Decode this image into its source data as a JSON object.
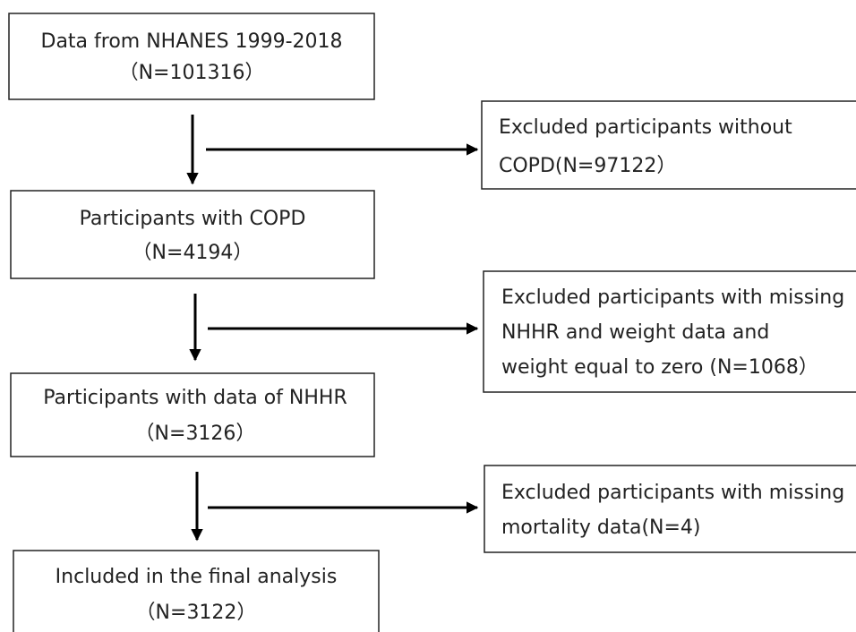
{
  "nodes": [
    {
      "lines": [
        "Data from NHANES 1999-2018",
        "（N=101316）"
      ]
    },
    {
      "lines": [
        "Participants with COPD",
        "（N=4194）"
      ]
    },
    {
      "lines": [
        "Participants with data of NHHR",
        "（N=3126）"
      ]
    },
    {
      "lines": [
        "Included in the final analysis",
        "（N=3122）"
      ]
    }
  ],
  "exclusions": [
    {
      "lines": [
        "Excluded participants without",
        "COPD(N=97122）"
      ]
    },
    {
      "lines": [
        "Excluded participants with missing",
        "NHHR and weight data and",
        "weight equal to zero (N=1068）"
      ]
    },
    {
      "lines": [
        "Excluded participants with missing",
        "mortality data(N=4)"
      ]
    }
  ]
}
